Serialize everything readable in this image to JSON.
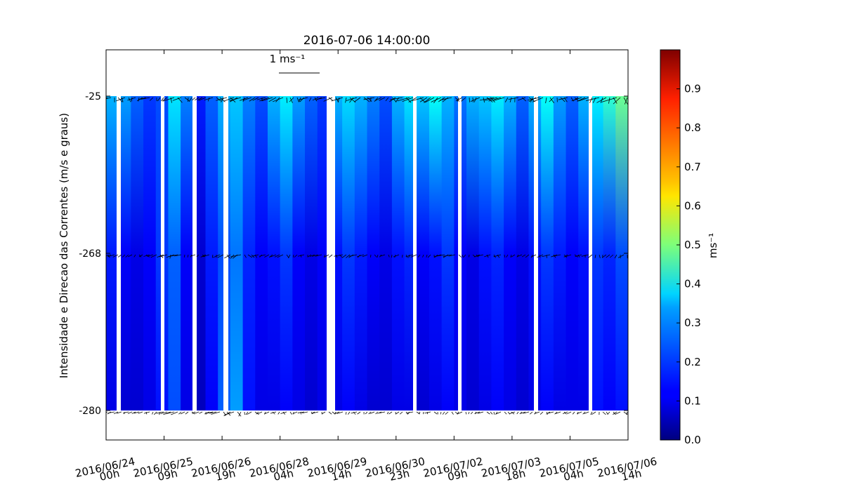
{
  "chart_data": {
    "type": "heatmap",
    "title": "2016-07-06 14:00:00",
    "ylabel": "Intensidade e Direcao das Correntes (m/s e graus)",
    "y_ticks": [
      "-25",
      "-268",
      "-280"
    ],
    "x_ticks": [
      {
        "date": "2016/06/24",
        "hour": "00h"
      },
      {
        "date": "2016/06/25",
        "hour": "09h"
      },
      {
        "date": "2016/06/26",
        "hour": "19h"
      },
      {
        "date": "2016/06/28",
        "hour": "04h"
      },
      {
        "date": "2016/06/29",
        "hour": "14h"
      },
      {
        "date": "2016/06/30",
        "hour": "23h"
      },
      {
        "date": "2016/07/02",
        "hour": "09h"
      },
      {
        "date": "2016/07/03",
        "hour": "18h"
      },
      {
        "date": "2016/07/05",
        "hour": "04h"
      },
      {
        "date": "2016/07/06",
        "hour": "14h"
      }
    ],
    "colorbar": {
      "label": "ms⁻¹",
      "min": 0.0,
      "max": 1.0,
      "colormap": "jet",
      "ticks": [
        "0.0",
        "0.1",
        "0.2",
        "0.3",
        "0.4",
        "0.5",
        "0.6",
        "0.7",
        "0.8",
        "0.9"
      ]
    },
    "quiver_key": {
      "label": "1 ms⁻¹",
      "magnitude": 1
    },
    "depth_levels": [
      "-25",
      "-268",
      "-280"
    ],
    "grid": false,
    "speed_profile": {
      "level_-25": [
        0.3,
        0.28,
        0.22,
        0.18,
        0.2,
        0.35,
        0.25,
        0.15,
        0.22,
        0.3,
        0.32,
        0.25,
        0.2,
        0.3,
        0.36,
        0.28,
        0.22,
        0.18,
        0.3,
        0.34,
        0.3,
        0.25,
        0.2,
        0.3,
        0.35,
        0.32,
        0.38,
        0.3,
        0.24,
        0.3,
        0.32,
        0.36,
        0.3,
        0.22,
        0.3,
        0.38,
        0.28,
        0.22,
        0.3,
        0.36,
        0.42,
        0.48
      ],
      "level_-268": [
        0.15,
        0.12,
        0.1,
        0.12,
        0.18,
        0.22,
        0.12,
        0.08,
        0.15,
        0.2,
        0.24,
        0.16,
        0.12,
        0.14,
        0.18,
        0.12,
        0.1,
        0.12,
        0.14,
        0.18,
        0.15,
        0.12,
        0.1,
        0.14,
        0.16,
        0.12,
        0.14,
        0.18,
        0.12,
        0.1,
        0.14,
        0.16,
        0.12,
        0.1,
        0.14,
        0.18,
        0.15,
        0.12,
        0.14,
        0.18,
        0.16,
        0.2
      ],
      "level_-280": [
        0.1,
        0.08,
        0.08,
        0.1,
        0.14,
        0.2,
        0.1,
        0.06,
        0.12,
        0.22,
        0.28,
        0.14,
        0.1,
        0.1,
        0.12,
        0.1,
        0.08,
        0.1,
        0.1,
        0.12,
        0.1,
        0.08,
        0.08,
        0.1,
        0.1,
        0.08,
        0.1,
        0.12,
        0.1,
        0.08,
        0.1,
        0.12,
        0.1,
        0.08,
        0.1,
        0.12,
        0.1,
        0.1,
        0.1,
        0.14,
        0.12,
        0.14
      ]
    }
  }
}
